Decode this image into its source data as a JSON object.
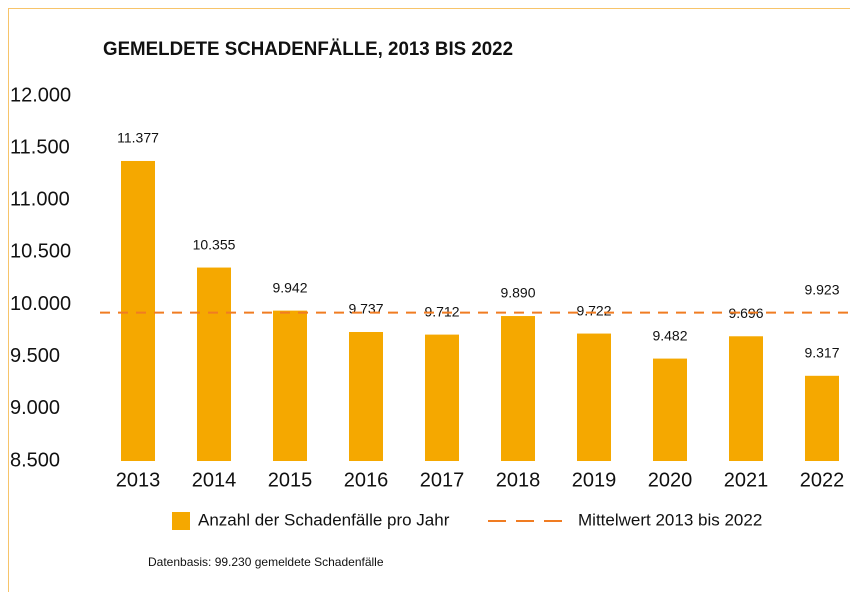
{
  "chart_data": {
    "type": "bar",
    "title": "GEMELDETE SCHADENFÄLLE, 2013 BIS 2022",
    "categories": [
      "2013",
      "2014",
      "2015",
      "2016",
      "2017",
      "2018",
      "2019",
      "2020",
      "2021",
      "2022"
    ],
    "series": [
      {
        "name": "Anzahl der Schadenfälle pro Jahr",
        "color": "#f5a800",
        "values": [
          11377,
          10355,
          9942,
          9737,
          9712,
          9890,
          9722,
          9482,
          9696,
          9317
        ],
        "value_labels": [
          "11.377",
          "10.355",
          "9.942",
          "9.737",
          "9.712",
          "9.890",
          "9.722",
          "9.482",
          "9.696",
          "9.317"
        ]
      }
    ],
    "reference_line": {
      "name": "Mittelwert 2013 bis 2022",
      "color": "#f07c22",
      "value": 9923,
      "value_label": "9.923"
    },
    "ylim": [
      8500,
      12000
    ],
    "yticks": [
      {
        "value": 8500,
        "label": "8.500"
      },
      {
        "value": 9000,
        "label": "9.000"
      },
      {
        "value": 9500,
        "label": "9.500"
      },
      {
        "value": 10000,
        "label": "10.000"
      },
      {
        "value": 10500,
        "label": "10.500"
      },
      {
        "value": 11000,
        "label": "11.000"
      },
      {
        "value": 11500,
        "label": "11.500"
      },
      {
        "value": 12000,
        "label": "12.000"
      }
    ],
    "grid": false,
    "note": "Datenbasis: 99.230 gemeldete Schadenfälle"
  }
}
